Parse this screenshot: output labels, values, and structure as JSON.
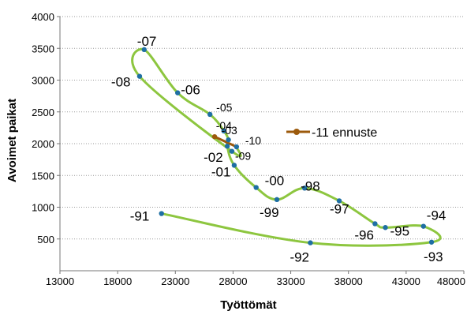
{
  "chart_data": {
    "type": "line",
    "xlabel": "Työttömät",
    "ylabel": "Avoimet paikat",
    "xlim": [
      13000,
      48000
    ],
    "ylim": [
      0,
      4000
    ],
    "x_ticks": [
      "13000",
      "18000",
      "23000",
      "28000",
      "33000",
      "38000",
      "43000",
      "48000"
    ],
    "y_ticks": [
      "500",
      "1000",
      "1500",
      "2000",
      "2500",
      "3000",
      "3500",
      "4000"
    ],
    "grid": "dotted-horizontal",
    "colors": {
      "main": "#8dc63f",
      "marker": "#1f6fa3",
      "forecast": "#9c5a0c"
    },
    "series": [
      {
        "style": "main",
        "points": [
          {
            "label": "-91",
            "x": 21800,
            "y": 900
          },
          {
            "label": "-92",
            "x": 34700,
            "y": 440
          },
          {
            "label": "-93",
            "x": 45200,
            "y": 450
          },
          {
            "label": "-94",
            "x": 44500,
            "y": 700
          },
          {
            "label": "-95",
            "x": 41200,
            "y": 680
          },
          {
            "label": "-96",
            "x": 40300,
            "y": 740
          },
          {
            "label": "-97",
            "x": 37200,
            "y": 1100
          },
          {
            "label": "-98",
            "x": 34200,
            "y": 1300
          },
          {
            "label": "-99",
            "x": 31800,
            "y": 1120
          },
          {
            "label": "-00",
            "x": 30000,
            "y": 1310
          },
          {
            "label": "-01",
            "x": 28100,
            "y": 1660
          },
          {
            "label": "-02",
            "x": 27500,
            "y": 1960
          },
          {
            "label": "-03",
            "x": 27600,
            "y": 2060
          },
          {
            "label": "-04",
            "x": 27200,
            "y": 2200
          },
          {
            "label": "-05",
            "x": 26000,
            "y": 2460
          },
          {
            "label": "-06",
            "x": 23200,
            "y": 2800
          },
          {
            "label": "-07",
            "x": 20300,
            "y": 3480
          },
          {
            "label": "-08",
            "x": 19900,
            "y": 3060
          },
          {
            "label": "-09",
            "x": 27900,
            "y": 1880
          },
          {
            "label": "-10",
            "x": 28300,
            "y": 1950
          }
        ]
      },
      {
        "name": "-11 ennuste",
        "style": "forecast",
        "points": [
          {
            "x": 28300,
            "y": 1950
          },
          {
            "x": 26400,
            "y": 2110
          }
        ]
      }
    ],
    "legend": {
      "label": "-11 ennuste",
      "position": "right-middle"
    }
  }
}
